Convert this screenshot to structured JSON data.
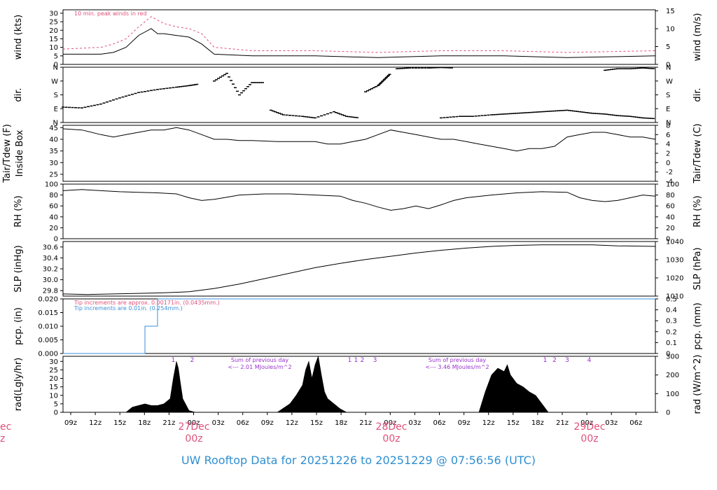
{
  "title": "UW Rooftop Data for 20251226  to  20251229 @ 07:56:56  (UTC)",
  "colors": {
    "red": "#e0507a",
    "blue": "#3a8fd8",
    "purple": "#9932cc",
    "title": "#2f8fd0",
    "axis": "#000000"
  },
  "time_axis": {
    "hour_ticks": [
      "09z",
      "12z",
      "15z",
      "18z",
      "21z",
      "00z",
      "03z",
      "06z",
      "09z",
      "12z",
      "15z",
      "18z",
      "21z",
      "00z",
      "03z",
      "06z",
      "09z",
      "12z",
      "15z",
      "18z",
      "21z",
      "00z",
      "03z",
      "06z"
    ],
    "day_labels": [
      {
        "day": "27Dec",
        "hour": "00z"
      },
      {
        "day": "28Dec",
        "hour": "00z"
      },
      {
        "day": "29Dec",
        "hour": "00z"
      }
    ],
    "cut_label": {
      "day": "ec",
      "hour": "z"
    }
  },
  "chart_data": [
    {
      "panel": "wind",
      "type": "line",
      "ylabel": "wind (kts)",
      "ylabel_right": "wind (m/s)",
      "ylim": [
        0,
        32
      ],
      "yticks": [
        "0",
        "5",
        "10",
        "15",
        "20",
        "25",
        "30"
      ],
      "yticks_right": [
        "0",
        "5",
        "10",
        "15"
      ],
      "annotation": "10 min. peak winds in red",
      "series": [
        {
          "name": "wind",
          "x_hours": [
            0,
            6,
            8,
            10,
            12,
            14,
            15,
            16,
            18,
            20,
            22,
            24,
            30,
            40,
            50,
            60,
            70,
            80,
            94
          ],
          "values": [
            6,
            6,
            7,
            10,
            17,
            21,
            18,
            18,
            17,
            16,
            12,
            6,
            5,
            5,
            4,
            5,
            5,
            4,
            5
          ]
        },
        {
          "name": "10 min. peak winds",
          "color": "red",
          "x_hours": [
            0,
            6,
            8,
            10,
            12,
            14,
            16,
            18,
            20,
            22,
            24,
            30,
            40,
            50,
            60,
            70,
            80,
            94
          ],
          "values": [
            9,
            10,
            12,
            15,
            22,
            28,
            24,
            22,
            21,
            18,
            10,
            8,
            8,
            7,
            8,
            8,
            7,
            8
          ]
        }
      ]
    },
    {
      "panel": "dir",
      "type": "scatter",
      "ylabel": "dir.",
      "ylabel_right": "dir.",
      "ylim": [
        0,
        360
      ],
      "yticks": [
        "N",
        "E",
        "S",
        "W",
        "N"
      ],
      "segments": [
        {
          "x_hours": [
            0,
            3,
            6,
            9,
            12,
            15,
            18,
            20,
            21.5
          ],
          "values": [
            100,
            95,
            120,
            160,
            195,
            215,
            230,
            240,
            250
          ]
        },
        {
          "x_hours": [
            24,
            26,
            28,
            30,
            32
          ],
          "values": [
            270,
            320,
            180,
            260,
            260
          ]
        },
        {
          "x_hours": [
            33,
            35,
            38,
            40,
            43,
            45,
            47
          ],
          "values": [
            80,
            50,
            40,
            30,
            70,
            40,
            30
          ]
        },
        {
          "x_hours": [
            48,
            50,
            51,
            52
          ],
          "values": [
            200,
            240,
            280,
            320
          ]
        },
        {
          "x_hours": [
            53,
            55,
            58,
            60,
            62
          ],
          "values": [
            350,
            355,
            355,
            358,
            355
          ]
        },
        {
          "x_hours": [
            60,
            63,
            65,
            68,
            70,
            72,
            74,
            76,
            78,
            80,
            82,
            84,
            86,
            88,
            90,
            92,
            94
          ],
          "values": [
            30,
            40,
            40,
            50,
            55,
            60,
            65,
            70,
            75,
            80,
            70,
            60,
            55,
            45,
            40,
            30,
            25
          ]
        },
        {
          "x_hours": [
            86,
            88,
            90,
            92,
            94
          ],
          "values": [
            340,
            350,
            350,
            355,
            350
          ]
        }
      ]
    },
    {
      "panel": "temp",
      "type": "line",
      "ylabel": "Tair/Tdew (F)",
      "ylabel2": "Inside Box",
      "ylabel_right": "Tair/Tdew (C)",
      "ylim": [
        22,
        46
      ],
      "yticks": [
        "25",
        "30",
        "35",
        "40",
        "45"
      ],
      "yticks_right": [
        "-4",
        "-2",
        "0",
        "2",
        "4",
        "6",
        "8"
      ],
      "series": [
        {
          "name": "Tair",
          "x_hours": [
            0,
            3,
            6,
            8,
            10,
            12,
            14,
            16,
            18,
            20,
            22,
            24,
            26,
            28,
            30,
            34,
            38,
            40,
            42,
            44,
            46,
            48,
            50,
            52,
            54,
            56,
            58,
            60,
            62,
            64,
            66,
            68,
            70,
            72,
            74,
            76,
            78,
            80,
            82,
            84,
            86,
            88,
            90,
            92,
            94
          ],
          "values": [
            44.5,
            44,
            42,
            41,
            42,
            43,
            44,
            44,
            45,
            44,
            42,
            40,
            40,
            39.5,
            39.5,
            39,
            39,
            39,
            38,
            38,
            39,
            40,
            42,
            44,
            43,
            42,
            41,
            40,
            40,
            39,
            38,
            37,
            36,
            35,
            36,
            36,
            37,
            41,
            42,
            43,
            43,
            42,
            41,
            41,
            40
          ]
        }
      ]
    },
    {
      "panel": "rh",
      "type": "line",
      "ylabel": "RH (%)",
      "ylabel_right": "RH (%)",
      "ylim": [
        0,
        100
      ],
      "yticks": [
        "0",
        "20",
        "40",
        "60",
        "80",
        "100"
      ],
      "series": [
        {
          "name": "RH",
          "x_hours": [
            0,
            3,
            6,
            9,
            12,
            15,
            18,
            20,
            22,
            24,
            26,
            28,
            32,
            36,
            40,
            44,
            46,
            48,
            50,
            52,
            54,
            56,
            58,
            60,
            62,
            64,
            68,
            72,
            76,
            80,
            82,
            84,
            86,
            88,
            90,
            92,
            94
          ],
          "values": [
            88,
            90,
            88,
            86,
            85,
            84,
            82,
            75,
            70,
            72,
            76,
            80,
            82,
            82,
            80,
            78,
            70,
            65,
            58,
            52,
            55,
            60,
            55,
            62,
            70,
            75,
            80,
            84,
            86,
            85,
            75,
            70,
            68,
            70,
            75,
            80,
            78
          ]
        }
      ]
    },
    {
      "panel": "slp",
      "type": "line",
      "ylabel": "SLP (inHg)",
      "ylabel_right": "SLP (hPa)",
      "ylim": [
        29.7,
        30.7
      ],
      "yticks": [
        "29.8",
        "30.0",
        "30.2",
        "30.4",
        "30.6"
      ],
      "yticks_right": [
        "1010",
        "1020",
        "1030",
        "1040"
      ],
      "series": [
        {
          "name": "SLP",
          "x_hours": [
            0,
            4,
            8,
            12,
            16,
            20,
            24,
            28,
            32,
            36,
            40,
            44,
            48,
            52,
            56,
            60,
            64,
            68,
            72,
            76,
            80,
            84,
            88,
            94
          ],
          "values": [
            29.74,
            29.73,
            29.74,
            29.75,
            29.76,
            29.78,
            29.84,
            29.92,
            30.02,
            30.12,
            30.22,
            30.3,
            30.37,
            30.43,
            30.49,
            30.54,
            30.58,
            30.61,
            30.63,
            30.64,
            30.64,
            30.64,
            30.62,
            30.61
          ]
        }
      ]
    },
    {
      "panel": "pcp",
      "type": "line",
      "ylabel": "pcp. (in)",
      "ylabel_right": "pcp. (mm)",
      "ylim": [
        0,
        0.02
      ],
      "yticks": [
        "0.000",
        "0.005",
        "0.010",
        "0.015",
        "0.020"
      ],
      "yticks_right": [
        "0",
        "0.1",
        "0.2",
        "0.3",
        "0.4",
        "0.5"
      ],
      "annotations": [
        {
          "text": "Tip increments are approx. 0.00171in. (0.0435mm.)",
          "color": "red"
        },
        {
          "text": "Tip increments are 0.01in. (0.254mm.)",
          "color": "blue"
        }
      ],
      "series": [
        {
          "name": "pcp",
          "x_hours": [
            0,
            13,
            13,
            15,
            15,
            94
          ],
          "values": [
            0,
            0,
            0.01,
            0.01,
            0.02,
            0.02
          ]
        }
      ]
    },
    {
      "panel": "rad",
      "type": "area",
      "ylabel": "rad(Lgly/hr)",
      "ylabel_right": "rad (W/m^2)",
      "ylim": [
        0,
        33
      ],
      "yticks": [
        "0",
        "5",
        "10",
        "15",
        "20",
        "25",
        "30"
      ],
      "yticks_right": [
        "0",
        "100",
        "200",
        "300"
      ],
      "notes": [
        {
          "text": "Sum of previous day",
          "sub": "<--- 2.01 MJoules/m^2"
        },
        {
          "text": "Sum of previous day",
          "sub": "<--- 3.46 MJoules/m^2"
        }
      ],
      "markers": [
        {
          "x_hour": 17.5,
          "label": "1"
        },
        {
          "x_hour": 20.5,
          "label": "2"
        },
        {
          "x_hour": 45.5,
          "label": "1"
        },
        {
          "x_hour": 46.5,
          "label": "1"
        },
        {
          "x_hour": 47.5,
          "label": "2"
        },
        {
          "x_hour": 49.5,
          "label": "3"
        },
        {
          "x_hour": 76.5,
          "label": "1"
        },
        {
          "x_hour": 78,
          "label": "2"
        },
        {
          "x_hour": 80,
          "label": "3"
        },
        {
          "x_hour": 83.5,
          "label": "4"
        }
      ],
      "series": [
        {
          "name": "rad",
          "x_hours": [
            10,
            11,
            12,
            13,
            14,
            15,
            16,
            17,
            17.5,
            18,
            18.3,
            18.6,
            19,
            20,
            21,
            34,
            36,
            37,
            38,
            38.5,
            39,
            39.5,
            40,
            40.5,
            41,
            41.5,
            42,
            43,
            44,
            45,
            46,
            66,
            67,
            68,
            69,
            70,
            70.5,
            71,
            72,
            73,
            74,
            75,
            76,
            77
          ],
          "values": [
            0,
            3,
            4,
            5,
            4,
            4,
            5,
            8,
            20,
            30,
            26,
            18,
            8,
            1,
            0,
            0,
            5,
            10,
            16,
            25,
            30,
            20,
            28,
            33,
            22,
            12,
            8,
            5,
            2,
            0,
            0,
            0,
            12,
            22,
            26,
            24,
            28,
            22,
            17,
            15,
            12,
            10,
            5,
            0
          ]
        }
      ]
    }
  ]
}
